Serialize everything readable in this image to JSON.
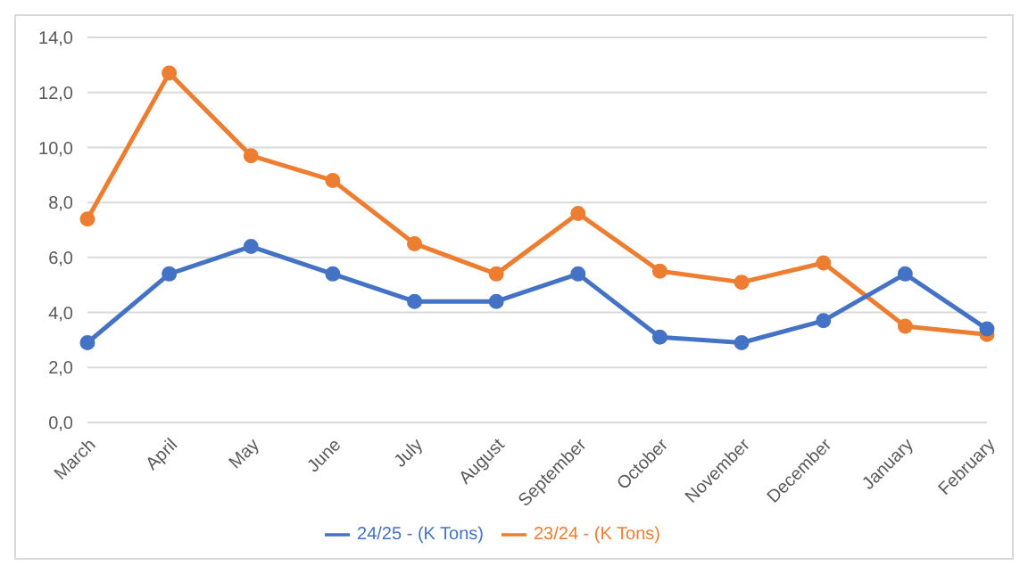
{
  "chart_data": {
    "type": "line",
    "categories": [
      "March",
      "April",
      "May",
      "June",
      "July",
      "August",
      "September",
      "October",
      "November",
      "December",
      "January",
      "February"
    ],
    "series": [
      {
        "name": "24/25 - (K Tons)",
        "color": "#4472c4",
        "values": [
          2.9,
          5.4,
          6.4,
          5.4,
          4.4,
          4.4,
          5.4,
          3.1,
          2.9,
          3.7,
          5.4,
          3.4
        ]
      },
      {
        "name": "23/24 - (K Tons)",
        "color": "#ed7d31",
        "values": [
          7.4,
          12.7,
          9.7,
          8.8,
          6.5,
          5.4,
          7.6,
          5.5,
          5.1,
          5.8,
          3.5,
          3.2
        ]
      }
    ],
    "ylim": [
      0,
      14
    ],
    "yticks": [
      {
        "value": 0,
        "label": "0,0"
      },
      {
        "value": 2,
        "label": "2,0"
      },
      {
        "value": 4,
        "label": "4,0"
      },
      {
        "value": 6,
        "label": "6,0"
      },
      {
        "value": 8,
        "label": "8,0"
      },
      {
        "value": 10,
        "label": "10,0"
      },
      {
        "value": 12,
        "label": "12,0"
      },
      {
        "value": 14,
        "label": "14,0"
      }
    ],
    "grid": "y",
    "legend": "bottom",
    "marker": "circle",
    "line_style": "solid"
  }
}
